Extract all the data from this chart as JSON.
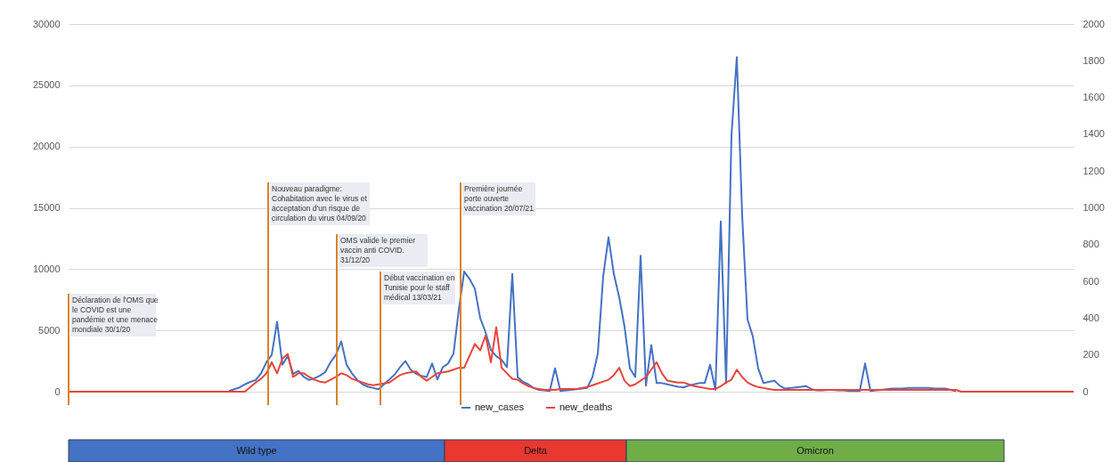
{
  "chart_data": {
    "type": "line",
    "categories": [
      null,
      null,
      null,
      null,
      null,
      null,
      null,
      null,
      null,
      null,
      null,
      null,
      null,
      null,
      null,
      null,
      null,
      null,
      null,
      null,
      null,
      null,
      null,
      null,
      null,
      null,
      null,
      null,
      null,
      null,
      null,
      null,
      null,
      null,
      null,
      null,
      null,
      null,
      null,
      null,
      null,
      null,
      null,
      null,
      null,
      null,
      null,
      null,
      null,
      null,
      null,
      null,
      null,
      null,
      null,
      null,
      null,
      null,
      null,
      null,
      null,
      null,
      null,
      null,
      null,
      null,
      null,
      null,
      null,
      null,
      null,
      null,
      null,
      null,
      null,
      null,
      null,
      null,
      null,
      null,
      null,
      null,
      null,
      null,
      null,
      null,
      null,
      null,
      null,
      null,
      null,
      null,
      null,
      null,
      null,
      null,
      null,
      null,
      null,
      null,
      null,
      null,
      null,
      null,
      null,
      null,
      null,
      null,
      null,
      null,
      null,
      null,
      null,
      null,
      null,
      null,
      null,
      null,
      null,
      null,
      null,
      null,
      null,
      null,
      null,
      null,
      null,
      null,
      null,
      null,
      null,
      null,
      null,
      null,
      null,
      null,
      null,
      null,
      null,
      null,
      null,
      null,
      null,
      null,
      null,
      null,
      null,
      null,
      null,
      null,
      null,
      null,
      null,
      null,
      null,
      null,
      null,
      null,
      null,
      null,
      null,
      null,
      null,
      null,
      null,
      null,
      null,
      null,
      null,
      null,
      null,
      null,
      null,
      null,
      null,
      null,
      null,
      null,
      null,
      null,
      null,
      null,
      null,
      null,
      null,
      null,
      null,
      null,
      null
    ],
    "ylim": [
      0,
      30000
    ],
    "yticks": [
      0,
      5000,
      10000,
      15000,
      20000,
      25000,
      30000
    ],
    "y2lim": [
      0,
      2000
    ],
    "y2ticks": [
      0,
      200,
      400,
      600,
      800,
      1000,
      1200,
      1400,
      1600,
      1800,
      2000
    ],
    "grid": "y",
    "legend": "bottom",
    "series": [
      {
        "name": "new_cases",
        "color": "#4472c4",
        "values": [
          null,
          null,
          null,
          null,
          null,
          null,
          null,
          null,
          null,
          null,
          null,
          null,
          null,
          null,
          null,
          null,
          null,
          null,
          null,
          null,
          null,
          null,
          null,
          null,
          null,
          null,
          null,
          null,
          null,
          null,
          50,
          200,
          350,
          600,
          800,
          950,
          1500,
          2400,
          3000,
          5700,
          2200,
          2900,
          1450,
          1700,
          1200,
          950,
          1100,
          1300,
          1600,
          2400,
          3000,
          4100,
          2200,
          1500,
          950,
          600,
          400,
          300,
          200,
          600,
          1000,
          1400,
          2000,
          2500,
          1800,
          1450,
          1300,
          1200,
          2300,
          1000,
          2000,
          2300,
          3100,
          6700,
          9800,
          9200,
          8400,
          6000,
          4850,
          3400,
          2900,
          2600,
          2000,
          9600,
          1200,
          800,
          600,
          300,
          150,
          100,
          50,
          1900,
          50,
          100,
          150,
          200,
          250,
          300,
          1200,
          3100,
          9400,
          12600,
          9600,
          7700,
          5300,
          1900,
          1200,
          11100,
          500,
          3800,
          700,
          700,
          600,
          500,
          400,
          350,
          500,
          600,
          700,
          700,
          2200,
          150,
          13900,
          700,
          20900,
          27300,
          14400,
          5900,
          4500,
          1900,
          700,
          800,
          900,
          500,
          250,
          300,
          350,
          400,
          450,
          200,
          100,
          100,
          150,
          150,
          100,
          100,
          50,
          50,
          50,
          2300,
          50,
          100,
          150,
          200,
          250,
          250,
          250,
          300,
          300,
          300,
          300,
          300,
          250,
          250,
          250,
          150,
          50,
          null,
          null,
          null,
          null,
          null,
          null,
          null,
          null,
          null,
          null,
          null,
          null,
          null,
          null,
          null,
          null,
          null,
          null,
          null,
          null,
          null,
          null
        ]
      },
      {
        "name": "new_deaths",
        "color": "#e8453c",
        "axis": "y2",
        "values": [
          0,
          0,
          0,
          0,
          0,
          0,
          0,
          0,
          0,
          0,
          0,
          0,
          0,
          0,
          0,
          0,
          0,
          0,
          0,
          0,
          0,
          0,
          0,
          0,
          0,
          0,
          0,
          0,
          0,
          0,
          0,
          0,
          0,
          0,
          25,
          50,
          70,
          100,
          160,
          100,
          180,
          205,
          80,
          100,
          100,
          80,
          65,
          55,
          50,
          65,
          80,
          100,
          90,
          70,
          60,
          50,
          40,
          35,
          40,
          45,
          50,
          70,
          90,
          100,
          105,
          110,
          80,
          60,
          80,
          100,
          105,
          110,
          120,
          130,
          130,
          195,
          260,
          225,
          305,
          160,
          350,
          130,
          100,
          70,
          65,
          45,
          30,
          20,
          15,
          10,
          10,
          10,
          15,
          15,
          15,
          15,
          20,
          25,
          35,
          45,
          55,
          65,
          90,
          130,
          60,
          30,
          40,
          60,
          80,
          120,
          160,
          100,
          60,
          55,
          50,
          50,
          40,
          30,
          25,
          20,
          15,
          15,
          30,
          50,
          65,
          120,
          80,
          50,
          35,
          25,
          20,
          15,
          10,
          10,
          10,
          10,
          10,
          10,
          10,
          10,
          10,
          10,
          10,
          10,
          10,
          10,
          10,
          10,
          10,
          10,
          10,
          10,
          10,
          10,
          10,
          10,
          10,
          10,
          10,
          10,
          10,
          10,
          10,
          10,
          10,
          10,
          10,
          0,
          0,
          0,
          0,
          0,
          0,
          0,
          0,
          0,
          0,
          0,
          0,
          0,
          0,
          0,
          0,
          0,
          0,
          0,
          0,
          0,
          0
        ]
      }
    ],
    "annotations": [
      "Déclaration de l'OMS que le COVID est une pandémie et une menace mondiale 30/1/20",
      "Nouveau paradigme: Cohabitation avec le virus et acceptation d'un risque de circulation du virus 04/09/20",
      "OMS valide le premier vaccin anti COVID. 31/12/20",
      "Début vaccination en Tunisie pour le staff médical 13/03/21",
      "Première journée porte ouverte vaccination 20/07/21",
      "Wild type",
      "Delta",
      "Omicron"
    ]
  }
}
